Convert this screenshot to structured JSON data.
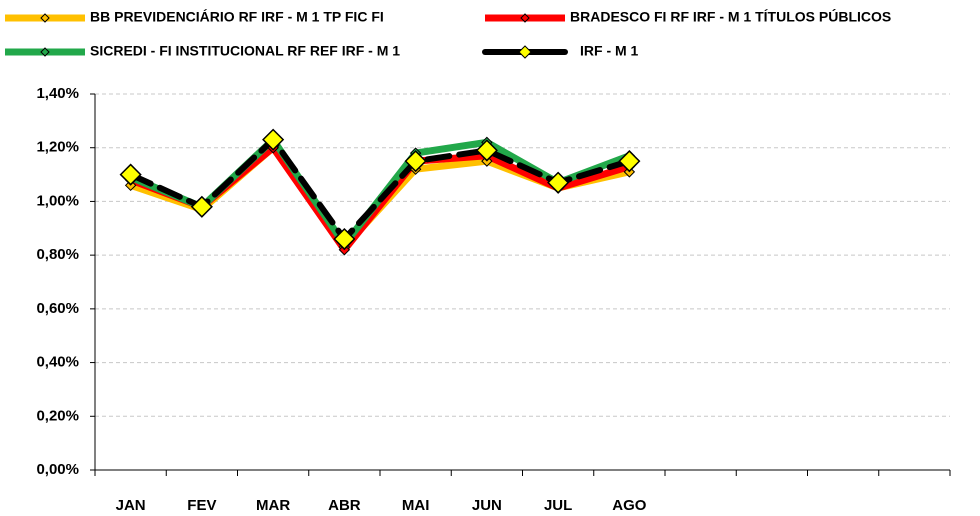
{
  "chart_data": {
    "type": "line",
    "categories": [
      "JAN",
      "FEV",
      "MAR",
      "ABR",
      "MAI",
      "JUN",
      "JUL",
      "AGO",
      null,
      null,
      null,
      null
    ],
    "series": [
      {
        "name": "BB PREVIDENCIÁRIO RF IRF - M 1 TP FIC FI",
        "color": "#ffc000",
        "values": [
          1.06,
          0.97,
          1.2,
          0.83,
          1.12,
          1.15,
          1.05,
          1.11,
          null,
          null,
          null,
          null
        ]
      },
      {
        "name": "BRADESCO FI RF IRF - M 1 TÍTULOS PÚBLICOS",
        "color": "#ff0000",
        "values": [
          1.08,
          0.98,
          1.2,
          0.82,
          1.15,
          1.17,
          1.05,
          1.13,
          null,
          null,
          null,
          null
        ]
      },
      {
        "name": "SICREDI - FI INSTITUCIONAL RF REF IRF - M 1",
        "color": "#22a84a",
        "values": [
          1.09,
          0.98,
          1.23,
          0.84,
          1.18,
          1.22,
          1.07,
          1.17,
          null,
          null,
          null,
          null
        ]
      },
      {
        "name": "IRF - M 1",
        "color": "#000000",
        "values": [
          1.1,
          0.98,
          1.23,
          0.86,
          1.15,
          1.19,
          1.07,
          1.15,
          null,
          null,
          null,
          null
        ]
      }
    ],
    "ylim": [
      0,
      1.4
    ],
    "yticks": [
      {
        "value": 0,
        "label": "0,00%"
      },
      {
        "value": 0.2,
        "label": "0,20%"
      },
      {
        "value": 0.4,
        "label": "0,40%"
      },
      {
        "value": 0.6,
        "label": "0,60%"
      },
      {
        "value": 0.8,
        "label": "0,80%"
      },
      {
        "value": 1.0,
        "label": "1,00%"
      },
      {
        "value": 1.2,
        "label": "1,20%"
      },
      {
        "value": 1.4,
        "label": "1,40%"
      }
    ],
    "grid": true
  }
}
